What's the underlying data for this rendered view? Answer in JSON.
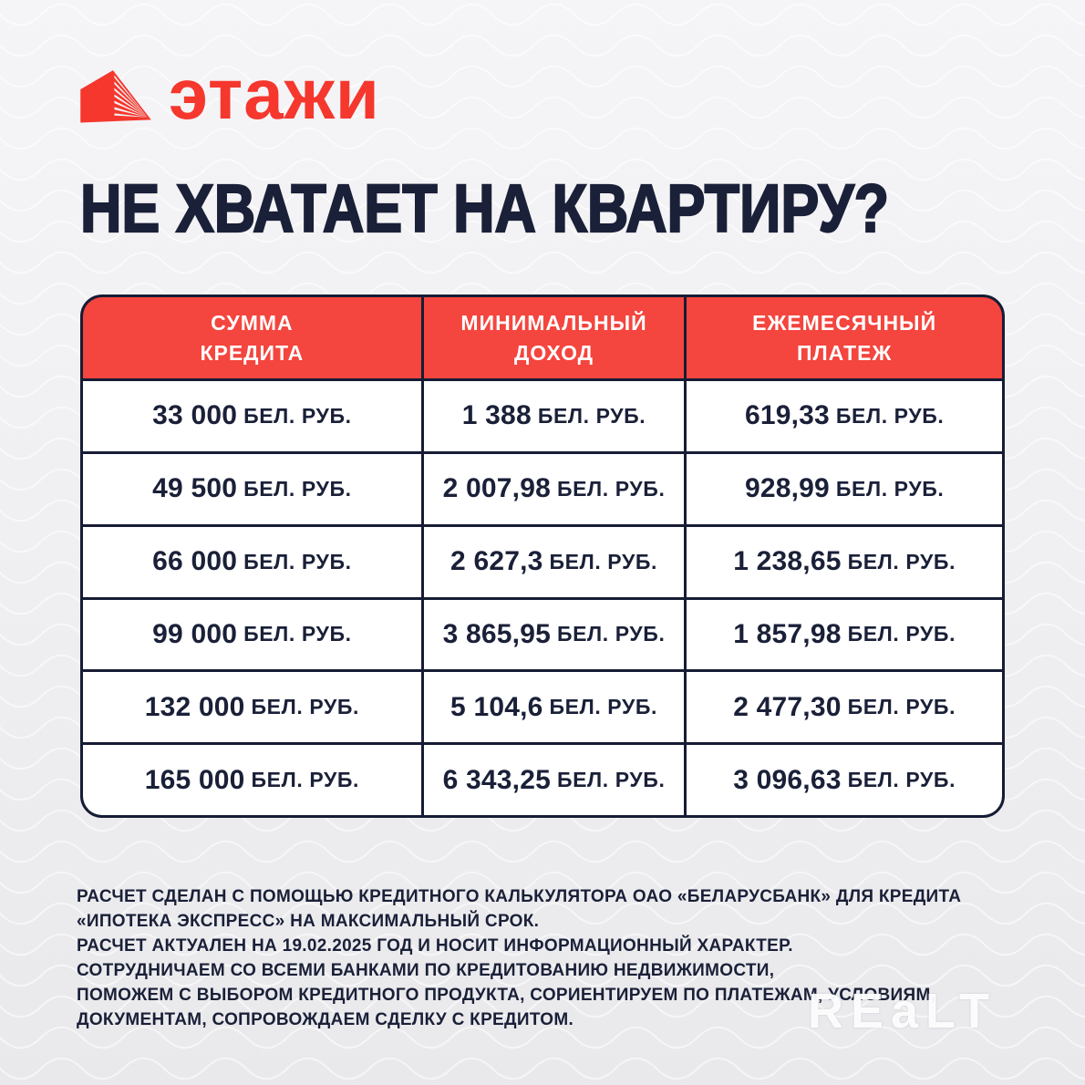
{
  "logo": {
    "brand": "этажи",
    "icon": "etazhi-building-icon",
    "brand_color": "#f5372e"
  },
  "heading": "НЕ ХВАТАЕТ НА КВАРТИРУ?",
  "table": {
    "columns": [
      "СУММА\nКРЕДИТА",
      "МИНИМАЛЬНЫЙ\nДОХОД",
      "ЕЖЕМЕСЯЧНЫЙ\nПЛАТЕЖ"
    ],
    "unit_label": "БЕЛ. РУБ."
  },
  "chart_data": {
    "type": "table",
    "title": "НЕ ХВАТАЕТ НА КВАРТИРУ?",
    "columns": [
      "СУММА КРЕДИТА",
      "МИНИМАЛЬНЫЙ ДОХОД",
      "ЕЖЕМЕСЯЧНЫЙ ПЛАТЕЖ"
    ],
    "unit": "БЕЛ. РУБ.",
    "rows": [
      [
        "33 000",
        "1 388",
        "619,33"
      ],
      [
        "49 500",
        "2 007,98",
        "928,99"
      ],
      [
        "66 000",
        "2 627,3",
        "1 238,65"
      ],
      [
        "99 000",
        "3 865,95",
        "1 857,98"
      ],
      [
        "132 000",
        "5 104,6",
        "2 477,30"
      ],
      [
        "165 000",
        "6 343,25",
        "3 096,63"
      ]
    ]
  },
  "disclaimer": {
    "lines": [
      "РАСЧЕТ СДЕЛАН С ПОМОЩЬЮ КРЕДИТНОГО КАЛЬКУЛЯТОРА ОАО «БЕЛАРУСБАНК» ДЛЯ КРЕДИТА",
      "«ИПОТЕКА ЭКСПРЕСС» НА МАКСИМАЛЬНЫЙ СРОК.",
      "РАСЧЕТ АКТУАЛЕН НА 19.02.2025 ГОД И НОСИТ ИНФОРМАЦИОННЫЙ ХАРАКТЕР.",
      "СОТРУДНИЧАЕМ СО ВСЕМИ БАНКАМИ ПО КРЕДИТОВАНИЮ НЕДВИЖИМОСТИ,",
      "ПОМОЖЕМ С ВЫБОРОМ КРЕДИТНОГО ПРОДУКТА, СОРИЕНТИРУЕМ ПО ПЛАТЕЖАМ, УСЛОВИЯМ,",
      "ДОКУМЕНТАМ, СОПРОВОЖДАЕМ СДЕЛКУ С КРЕДИТОМ."
    ]
  },
  "watermark": "REaLT",
  "colors": {
    "background": "#efeff1",
    "navy": "#1a2038",
    "table_border": "#161c34",
    "header_red": "#f4453e",
    "logo_red": "#f5372e",
    "cell_bg": "#ffffff"
  }
}
